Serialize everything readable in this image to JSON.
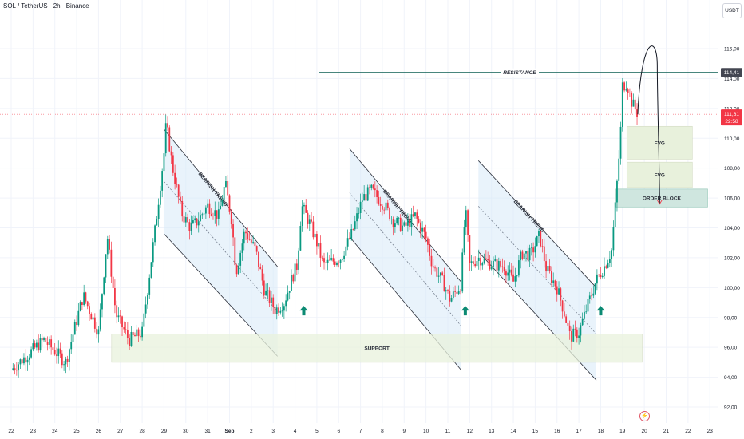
{
  "header": {
    "symbol_title": "SOL / TetherUS · 2h · Binance",
    "currency": "USDT"
  },
  "icons": {
    "flash": "flash-icon",
    "arrow": "arrow-up-icon"
  },
  "colors": {
    "up": "#089981",
    "down": "#f23645",
    "channel_fill": "#d7e9f7",
    "zone_fill": "#e8f1dc",
    "order_block_fill": "#cfe6df",
    "resistance_line": "#0b5e52",
    "arrow": "#0b8a73",
    "current_price_bg": "#f23645",
    "resistance_price_bg": "#434651"
  },
  "chart_data": {
    "type": "candlestick",
    "y_ticks": [
      "116,00",
      "114,00",
      "112,00",
      "110,00",
      "108,00",
      "106,00",
      "104,00",
      "102,00",
      "100,00",
      "98,00",
      "96,00",
      "94,00",
      "92,00"
    ],
    "x_ticks": [
      "22",
      "23",
      "24",
      "25",
      "26",
      "27",
      "28",
      "29",
      "30",
      "31",
      "Sep",
      "2",
      "3",
      "4",
      "5",
      "6",
      "7",
      "8",
      "9",
      "10",
      "11",
      "12",
      "13",
      "14",
      "15",
      "16",
      "17",
      "18",
      "19",
      "20",
      "21",
      "22",
      "23"
    ],
    "ylim": [
      91.4,
      118.6
    ],
    "price_path": [
      [
        0,
        94.5
      ],
      [
        1.5,
        96.5
      ],
      [
        2.5,
        95
      ],
      [
        3.3,
        99.5
      ],
      [
        4,
        97
      ],
      [
        4.4,
        103.5
      ],
      [
        4.8,
        98.2
      ],
      [
        5.4,
        96.5
      ],
      [
        6,
        97
      ],
      [
        6.6,
        104
      ],
      [
        7,
        109
      ],
      [
        7.1,
        111
      ],
      [
        7.4,
        108
      ],
      [
        7.8,
        105
      ],
      [
        8.2,
        104
      ],
      [
        8.5,
        104.4
      ],
      [
        9,
        105.5
      ],
      [
        9.5,
        104.8
      ],
      [
        9.8,
        107
      ],
      [
        10.1,
        104.5
      ],
      [
        10.3,
        101
      ],
      [
        10.7,
        103.8
      ],
      [
        11.2,
        102.5
      ],
      [
        11.6,
        99.8
      ],
      [
        12.1,
        98.5
      ],
      [
        12.5,
        99
      ],
      [
        12.9,
        100.8
      ],
      [
        13.1,
        101.5
      ],
      [
        13.3,
        105.5
      ],
      [
        13.7,
        104.2
      ],
      [
        14,
        103
      ],
      [
        14.3,
        101.5
      ],
      [
        15.1,
        102
      ],
      [
        15.6,
        103.6
      ],
      [
        16.1,
        106
      ],
      [
        16.5,
        106.5
      ],
      [
        17.1,
        105.5
      ],
      [
        17.5,
        104.5
      ],
      [
        18,
        104
      ],
      [
        18.5,
        104.8
      ],
      [
        19,
        103.3
      ],
      [
        19.3,
        101.5
      ],
      [
        19.8,
        100.3
      ],
      [
        20.1,
        99.2
      ],
      [
        20.6,
        100.2
      ],
      [
        20.8,
        105.4
      ],
      [
        21,
        101.5
      ],
      [
        21.4,
        102
      ],
      [
        22,
        101.6
      ],
      [
        22.6,
        101.4
      ],
      [
        23,
        100.4
      ],
      [
        23.4,
        102.3
      ],
      [
        23.8,
        102.2
      ],
      [
        24.2,
        103.5
      ],
      [
        24.5,
        101.3
      ],
      [
        25,
        100
      ],
      [
        25.3,
        98.5
      ],
      [
        25.6,
        96.7
      ],
      [
        26,
        97
      ],
      [
        26.4,
        98.8
      ],
      [
        26.8,
        100.5
      ],
      [
        27.2,
        101.5
      ],
      [
        27.5,
        102.5
      ],
      [
        27.7,
        106
      ],
      [
        27.9,
        110
      ],
      [
        28,
        113.5
      ],
      [
        28.2,
        113.7
      ],
      [
        28.4,
        112.5
      ],
      [
        28.7,
        111.6
      ]
    ],
    "annotations": {
      "resistance": {
        "label": "RESISTANCE",
        "price": 114.41,
        "price_label": "114,41"
      },
      "current_price": {
        "price": 111.61,
        "price_label": "111,61",
        "timer": "22:58"
      },
      "support": {
        "label": "SUPPORT",
        "range": [
          95.0,
          96.9
        ]
      },
      "bearish_trends": [
        {
          "label": "BEARISH TREND",
          "from_day": 7.0,
          "to_day": 12.2,
          "upper": [
            110.6,
            101.4
          ],
          "lower": [
            103.6,
            95.4
          ]
        },
        {
          "label": "BEARISH TREND",
          "from_day": 15.5,
          "to_day": 20.6,
          "upper": [
            109.3,
            100.4
          ],
          "lower": [
            103.4,
            94.5
          ]
        },
        {
          "label": "BEARISH TREND",
          "from_day": 21.4,
          "to_day": 26.8,
          "upper": [
            108.5,
            100.0
          ],
          "lower": [
            102.4,
            93.8
          ]
        }
      ],
      "fvg_zones": [
        {
          "label": "FVG",
          "range": [
            108.6,
            110.8
          ]
        },
        {
          "label": "FVG",
          "range": [
            106.7,
            108.4
          ]
        }
      ],
      "order_block": {
        "label": "ORDER BLOCK",
        "range": [
          105.4,
          106.6
        ]
      },
      "buy_arrows_day": [
        13.4,
        20.8,
        27.0
      ],
      "projection": {
        "start": [
          28.7,
          111.6
        ],
        "peak": [
          29.3,
          115.9
        ],
        "end": [
          29.7,
          105.6
        ]
      }
    }
  }
}
